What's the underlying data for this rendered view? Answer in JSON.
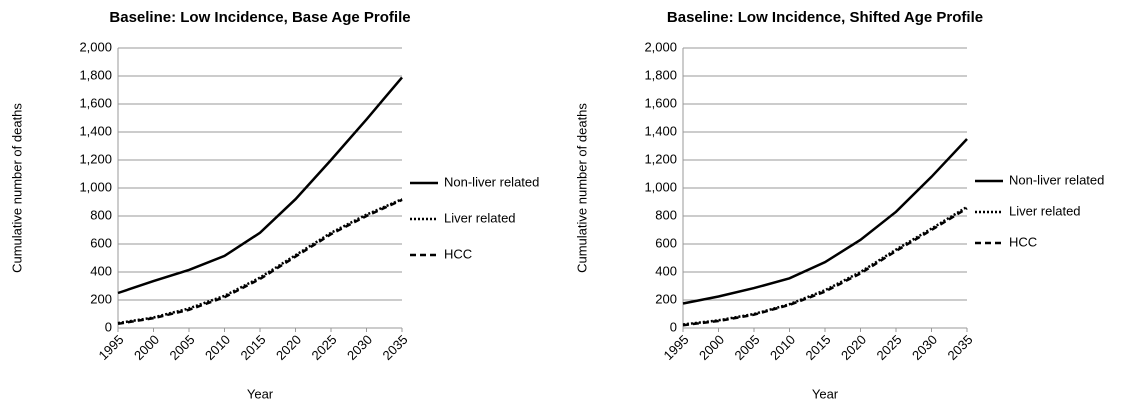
{
  "chart_data": [
    {
      "type": "line",
      "title": "Baseline: Low Incidence, Base Age Profile",
      "xlabel": "Year",
      "ylabel": "Cumulative number of deaths",
      "x": [
        1995,
        2000,
        2005,
        2010,
        2015,
        2020,
        2025,
        2030,
        2035
      ],
      "series": [
        {
          "name": "Non-liver related",
          "color": "#000000",
          "linestyle": "solid",
          "values": [
            250,
            335,
            415,
            515,
            680,
            920,
            1200,
            1490,
            1790
          ]
        },
        {
          "name": "Liver related",
          "color": "#000000",
          "linestyle": "dotted",
          "values": [
            35,
            75,
            140,
            230,
            360,
            520,
            680,
            810,
            920
          ]
        },
        {
          "name": "HCC",
          "color": "#000000",
          "linestyle": "dashed",
          "values": [
            30,
            70,
            130,
            220,
            350,
            510,
            670,
            800,
            915
          ]
        }
      ],
      "xlim": [
        1995,
        2035
      ],
      "xticks": [
        1995,
        2000,
        2005,
        2010,
        2015,
        2020,
        2025,
        2030,
        2035
      ],
      "ylim": [
        0,
        2000
      ],
      "yticks": [
        0,
        200,
        400,
        600,
        800,
        {
          "value": 1000,
          "label": "1,000"
        },
        {
          "value": 1200,
          "label": "1,200"
        },
        {
          "value": 1400,
          "label": "1,400"
        },
        {
          "value": 1600,
          "label": "1,600"
        },
        {
          "value": 1800,
          "label": "1,800"
        },
        {
          "value": 2000,
          "label": "2,000"
        }
      ],
      "grid": true,
      "legend": "right"
    },
    {
      "type": "line",
      "title": "Baseline: Low Incidence, Shifted Age Profile",
      "xlabel": "Year",
      "ylabel": "Cumulative number of deaths",
      "x": [
        1995,
        2000,
        2005,
        2010,
        2015,
        2020,
        2025,
        2030,
        2035
      ],
      "series": [
        {
          "name": "Non-liver related",
          "color": "#000000",
          "linestyle": "solid",
          "values": [
            175,
            225,
            285,
            355,
            470,
            630,
            830,
            1080,
            1350
          ]
        },
        {
          "name": "Liver related",
          "color": "#000000",
          "linestyle": "dotted",
          "values": [
            25,
            55,
            100,
            170,
            270,
            400,
            560,
            710,
            865
          ]
        },
        {
          "name": "HCC",
          "color": "#000000",
          "linestyle": "dashed",
          "values": [
            20,
            50,
            95,
            165,
            260,
            390,
            550,
            700,
            855
          ]
        }
      ],
      "xlim": [
        1995,
        2035
      ],
      "xticks": [
        1995,
        2000,
        2005,
        2010,
        2015,
        2020,
        2025,
        2030,
        2035
      ],
      "ylim": [
        0,
        2000
      ],
      "yticks": [
        0,
        200,
        400,
        600,
        800,
        {
          "value": 1000,
          "label": "1,000"
        },
        {
          "value": 1200,
          "label": "1,200"
        },
        {
          "value": 1400,
          "label": "1,400"
        },
        {
          "value": 1600,
          "label": "1,600"
        },
        {
          "value": 1800,
          "label": "1,800"
        },
        {
          "value": 2000,
          "label": "2,000"
        }
      ],
      "grid": true,
      "legend": "right"
    }
  ]
}
